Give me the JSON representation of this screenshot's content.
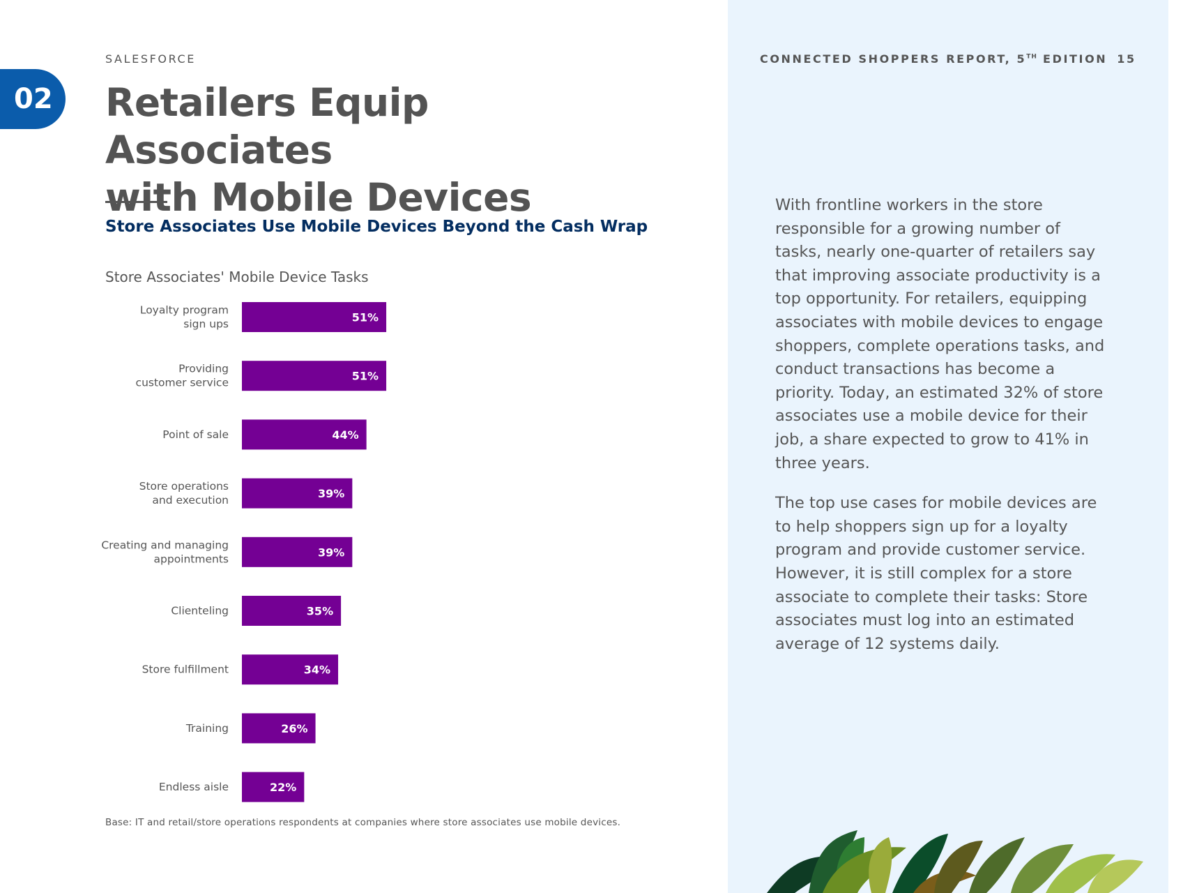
{
  "section": {
    "number": "02"
  },
  "header": {
    "brand": "SALESFORCE",
    "report_title": "CONNECTED SHOPPERS REPORT, 5",
    "report_sup": "TH",
    "report_edition": " EDITION",
    "page_number": "15"
  },
  "title_lines": [
    "Retailers Equip Associates",
    "with Mobile Devices"
  ],
  "subtitle": "Store Associates Use Mobile Devices Beyond the Cash Wrap",
  "chart_data": {
    "type": "bar",
    "orientation": "horizontal",
    "title": "Store Associates' Mobile Device Tasks",
    "categories": [
      [
        "Loyalty program",
        "sign ups"
      ],
      [
        "Providing",
        "customer service"
      ],
      [
        "Point of sale"
      ],
      [
        "Store operations",
        "and execution"
      ],
      [
        "Creating and managing",
        "appointments"
      ],
      [
        "Clienteling"
      ],
      [
        "Store fulfillment"
      ],
      [
        "Training"
      ],
      [
        "Endless aisle"
      ]
    ],
    "values": [
      51,
      51,
      44,
      39,
      39,
      35,
      34,
      26,
      22
    ],
    "data_labels": [
      "51%",
      "51%",
      "44%",
      "39%",
      "39%",
      "35%",
      "34%",
      "26%",
      "22%"
    ],
    "value_unit": "%",
    "xlim": [
      0,
      100
    ],
    "bar_color": "#740094",
    "label_color": "#ffffff",
    "grid": false,
    "legend": "none"
  },
  "footnote": "Base: IT and retail/store operations respondents at companies where store associates use mobile devices.",
  "body_paragraphs": [
    "With frontline workers in the store responsible for a growing number of tasks, nearly one-quarter of retailers say that improving associate productivity is a top opportunity. For retailers, equipping associates with mobile devices to engage shoppers, complete operations tasks, and conduct transactions has become a priority. Today, an estimated 32% of store associates use a mobile device for their job, a share expected to grow to 41% in three years.",
    "The top use cases for mobile devices are to help shoppers sign up for a loyalty program and provide customer service. However, it is still complex for a store associate to complete their tasks: Store associates must log into an estimated average of 12 systems daily."
  ],
  "colors": {
    "badge": "#0b5cab",
    "subtitle": "#032d60",
    "panel": "#eaf4fd"
  }
}
